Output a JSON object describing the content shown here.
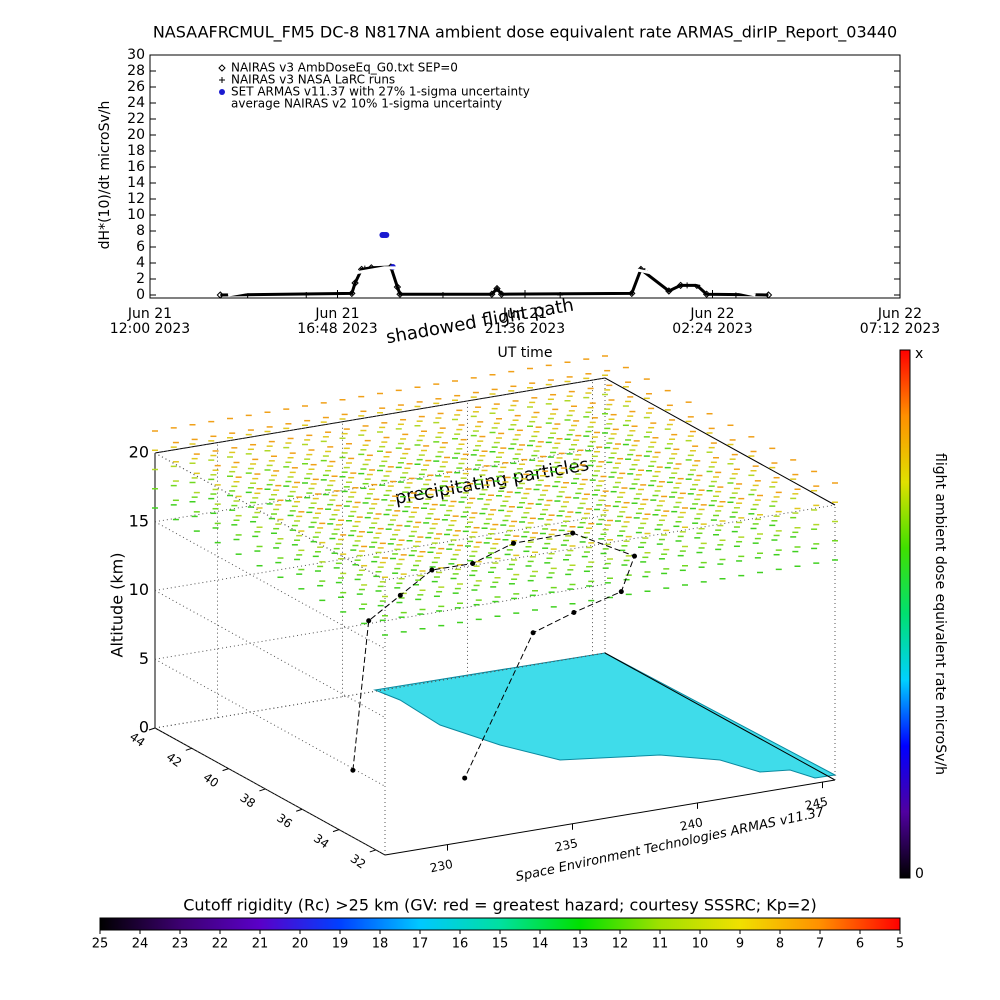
{
  "chart_data": [
    {
      "type": "line",
      "title": "NASAAFRCMUL_FM5 DC-8   N817NA ambient dose equivalent rate ARMAS_dirIP_Report_03440",
      "ylabel": "dH*(10)/dt microSv/h",
      "xlabel": "UT time",
      "ylim": [
        0,
        30
      ],
      "yticks": [
        0,
        2,
        4,
        6,
        8,
        10,
        12,
        14,
        16,
        18,
        20,
        22,
        24,
        26,
        28,
        30
      ],
      "xlim": [
        "2023-06-21T12:00",
        "2023-06-22T07:12"
      ],
      "xticks": [
        {
          "value": "2023-06-21T12:00",
          "label": [
            "Jun 21",
            "12:00 2023"
          ]
        },
        {
          "value": "2023-06-21T16:48",
          "label": [
            "Jun 21",
            "16:48 2023"
          ]
        },
        {
          "value": "2023-06-21T21:36",
          "label": [
            "Jun 21",
            "21:36 2023"
          ]
        },
        {
          "value": "2023-06-22T02:24",
          "label": [
            "Jun 22",
            "02:24 2023"
          ]
        },
        {
          "value": "2023-06-22T07:12",
          "label": [
            "Jun 22",
            "07:12 2023"
          ]
        }
      ],
      "legend": "upper-left",
      "series": [
        {
          "name": "NAIRAS v3 AmbDoseEq_G0.txt SEP=0",
          "color": "#000000",
          "marker": "diamond",
          "x": [
            "2023-06-21T13:48",
            "2023-06-21T17:10",
            "2023-06-21T17:15",
            "2023-06-21T17:25",
            "2023-06-21T17:40",
            "2023-06-21T18:10",
            "2023-06-21T18:20",
            "2023-06-21T18:24",
            "2023-06-21T20:45",
            "2023-06-21T20:53",
            "2023-06-21T21:00",
            "2023-06-22T00:20",
            "2023-06-22T00:34",
            "2023-06-22T01:17",
            "2023-06-22T01:35",
            "2023-06-22T02:00",
            "2023-06-22T02:15",
            "2023-06-22T03:50"
          ],
          "values": [
            0,
            0.2,
            1.5,
            3.2,
            3.4,
            3.5,
            1.0,
            0.1,
            0.1,
            0.8,
            0.1,
            0.2,
            3.2,
            0.5,
            1.2,
            1.2,
            0.1,
            0
          ]
        },
        {
          "name": "NAIRAS v3 NASA LaRC runs",
          "color": "#000000",
          "marker": "plus",
          "x": [
            "2023-06-21T14:30",
            "2023-06-21T16:00",
            "2023-06-21T17:30",
            "2023-06-21T19:30",
            "2023-06-21T22:30",
            "2023-06-22T00:40",
            "2023-06-22T01:45",
            "2023-06-22T03:00"
          ],
          "values": [
            0,
            0,
            3.3,
            0,
            0,
            3.0,
            1.2,
            0
          ]
        },
        {
          "name": "SET ARMAS v11.37 with 27% 1-sigma uncertainty",
          "color": "#1a1ad0",
          "marker": "dot",
          "x": [
            "2023-06-21T17:57",
            "2023-06-21T17:59",
            "2023-06-21T18:01",
            "2023-06-21T18:03",
            "2023-06-21T18:13"
          ],
          "values": [
            7.5,
            7.5,
            7.5,
            7.5,
            3.5
          ]
        },
        {
          "name": "average NAIRAS v2 10% 1-sigma uncertainty",
          "color": "#ffffff",
          "marker": "none",
          "x": [
            "2023-06-21T14:00",
            "2023-06-21T18:00",
            "2023-06-22T00:30",
            "2023-06-22T03:30"
          ],
          "values": [
            0,
            3.4,
            3.1,
            0
          ]
        }
      ]
    },
    {
      "type": "scatter3d",
      "zlabel": "Altitude (km)",
      "zlim": [
        0,
        20
      ],
      "zticks": [
        0,
        5,
        10,
        15,
        20
      ],
      "latlim": [
        44,
        31.5
      ],
      "latticks": [
        44,
        42,
        40,
        38,
        36,
        34,
        32
      ],
      "lonlim": [
        227.5,
        245.5
      ],
      "lonticks": [
        230,
        235,
        240,
        245
      ],
      "annotations": [
        "shadowed flight path",
        "precipitating particles"
      ],
      "credit": "Space Environment Technologies ARMAS v11.37",
      "series": [
        {
          "color": "#000000",
          "lon": [
            231,
            232,
            234,
            236,
            238,
            240,
            242,
            243,
            241,
            238,
            236,
            234
          ],
          "lat": [
            38,
            38.5,
            39.5,
            40.5,
            41,
            41.5,
            41,
            39,
            37,
            35.5,
            35,
            36
          ],
          "values": [
            0.3,
            10.5,
            11,
            11.5,
            11,
            11.5,
            12,
            11.5,
            11,
            11.5,
            11,
            0.3
          ]
        }
      ]
    },
    {
      "type": "colorbar",
      "label": "flight ambient dose equivalent rate microSv/h",
      "max_label": "x",
      "min_label": "0",
      "colors": [
        "#000000",
        "#5000a0",
        "#0000ff",
        "#00d0ff",
        "#00e070",
        "#40e000",
        "#e0e000",
        "#ff9000",
        "#ff0000"
      ]
    },
    {
      "type": "colorbar",
      "title": "Cutoff rigidity (Rc) >25 km (GV: red = greatest hazard; courtesy SSSRC; Kp=2)",
      "ticks": [
        25,
        24,
        23,
        22,
        21,
        20,
        19,
        18,
        17,
        16,
        15,
        14,
        13,
        12,
        11,
        10,
        9,
        8,
        7,
        6,
        5
      ],
      "colors": [
        "#000000",
        "#3c0070",
        "#5a00c8",
        "#0040ff",
        "#00c8ff",
        "#00e0a0",
        "#00e000",
        "#a0e000",
        "#f0e000",
        "#ff9000",
        "#ff0000"
      ]
    }
  ]
}
